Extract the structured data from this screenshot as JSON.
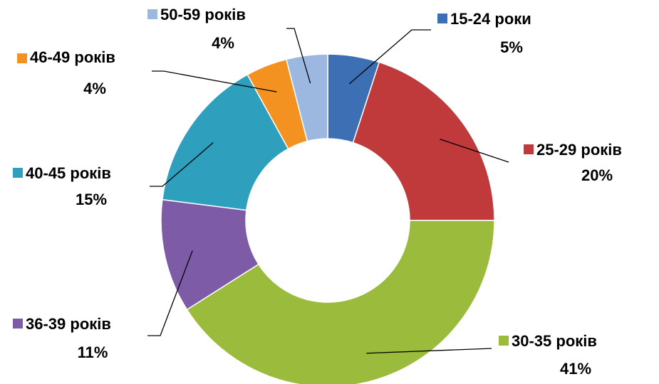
{
  "chart_data": {
    "type": "donut",
    "categories": [
      "15-24 роки",
      "25-29 років",
      "30-35 років",
      "36-39 років",
      "40-45 років",
      "46-49 років",
      "50-59 років"
    ],
    "values": [
      5,
      20,
      41,
      11,
      15,
      4,
      4
    ],
    "value_labels": [
      "5%",
      "20%",
      "41%",
      "11%",
      "15%",
      "4%",
      "4%"
    ],
    "colors": [
      "#3d6fb5",
      "#c0393b",
      "#9bbb3c",
      "#7d5ba6",
      "#2ea0be",
      "#f39221",
      "#9db8e0"
    ]
  }
}
